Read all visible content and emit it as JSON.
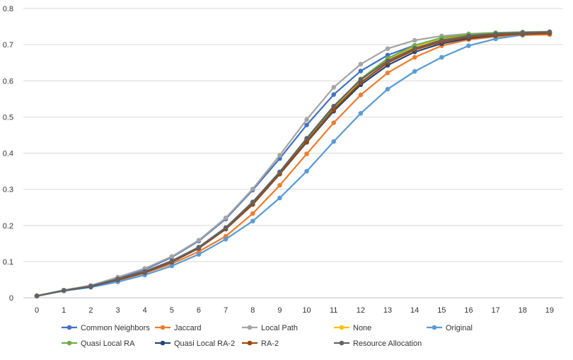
{
  "chart_data": {
    "type": "line",
    "title": "",
    "xlabel": "",
    "ylabel": "",
    "x": [
      0,
      1,
      2,
      3,
      4,
      5,
      6,
      7,
      8,
      9,
      10,
      11,
      12,
      13,
      14,
      15,
      16,
      17,
      18,
      19
    ],
    "ylim": [
      0,
      0.8
    ],
    "yticks": [
      "0",
      "0.1",
      "0.2",
      "0.3",
      "0.4",
      "0.5",
      "0.6",
      "0.7",
      "0.8"
    ],
    "grid": true,
    "legend": "bottom",
    "series": [
      {
        "name": "Common Neighbors",
        "color": "#4472C4",
        "values": [
          0.005,
          0.021,
          0.033,
          0.055,
          0.078,
          0.112,
          0.157,
          0.218,
          0.298,
          0.385,
          0.478,
          0.562,
          0.627,
          0.671,
          0.698,
          0.714,
          0.724,
          0.73,
          0.733,
          0.735
        ]
      },
      {
        "name": "Jaccard",
        "color": "#ED7D31",
        "values": [
          0.005,
          0.02,
          0.031,
          0.048,
          0.068,
          0.094,
          0.128,
          0.17,
          0.233,
          0.311,
          0.398,
          0.484,
          0.561,
          0.622,
          0.665,
          0.697,
          0.714,
          0.722,
          0.726,
          0.728
        ]
      },
      {
        "name": "Local Path",
        "color": "#A5A5A5",
        "values": [
          0.005,
          0.021,
          0.034,
          0.057,
          0.081,
          0.114,
          0.159,
          0.221,
          0.301,
          0.394,
          0.493,
          0.582,
          0.646,
          0.689,
          0.712,
          0.724,
          0.73,
          0.733,
          0.735,
          0.736
        ]
      },
      {
        "name": "None",
        "color": "#FFC000",
        "values": [
          0.005,
          0.02,
          0.032,
          0.051,
          0.072,
          0.101,
          0.139,
          0.192,
          0.262,
          0.346,
          0.437,
          0.525,
          0.602,
          0.658,
          0.695,
          0.717,
          0.727,
          0.731,
          0.733,
          0.734
        ]
      },
      {
        "name": "Original",
        "color": "#5B9BD5",
        "values": [
          0.005,
          0.019,
          0.029,
          0.044,
          0.063,
          0.088,
          0.12,
          0.162,
          0.212,
          0.276,
          0.35,
          0.432,
          0.51,
          0.577,
          0.626,
          0.665,
          0.697,
          0.716,
          0.727,
          0.733
        ]
      },
      {
        "name": "Quasi Local RA",
        "color": "#70AD47",
        "values": [
          0.005,
          0.02,
          0.032,
          0.051,
          0.072,
          0.101,
          0.139,
          0.192,
          0.262,
          0.346,
          0.437,
          0.527,
          0.605,
          0.662,
          0.698,
          0.719,
          0.728,
          0.732,
          0.734,
          0.735
        ]
      },
      {
        "name": "Quasi Local RA-2",
        "color": "#264478",
        "values": [
          0.005,
          0.02,
          0.031,
          0.05,
          0.07,
          0.099,
          0.137,
          0.19,
          0.258,
          0.342,
          0.43,
          0.516,
          0.589,
          0.643,
          0.68,
          0.703,
          0.717,
          0.725,
          0.73,
          0.733
        ]
      },
      {
        "name": "RA-2",
        "color": "#9E480E",
        "values": [
          0.005,
          0.02,
          0.032,
          0.051,
          0.071,
          0.1,
          0.138,
          0.191,
          0.259,
          0.343,
          0.432,
          0.52,
          0.595,
          0.65,
          0.686,
          0.708,
          0.72,
          0.726,
          0.729,
          0.731
        ]
      },
      {
        "name": "Resource Allocation",
        "color": "#636363",
        "values": [
          0.005,
          0.02,
          0.032,
          0.052,
          0.073,
          0.102,
          0.14,
          0.194,
          0.265,
          0.348,
          0.441,
          0.53,
          0.603,
          0.655,
          0.69,
          0.712,
          0.724,
          0.73,
          0.733,
          0.735
        ]
      }
    ]
  }
}
